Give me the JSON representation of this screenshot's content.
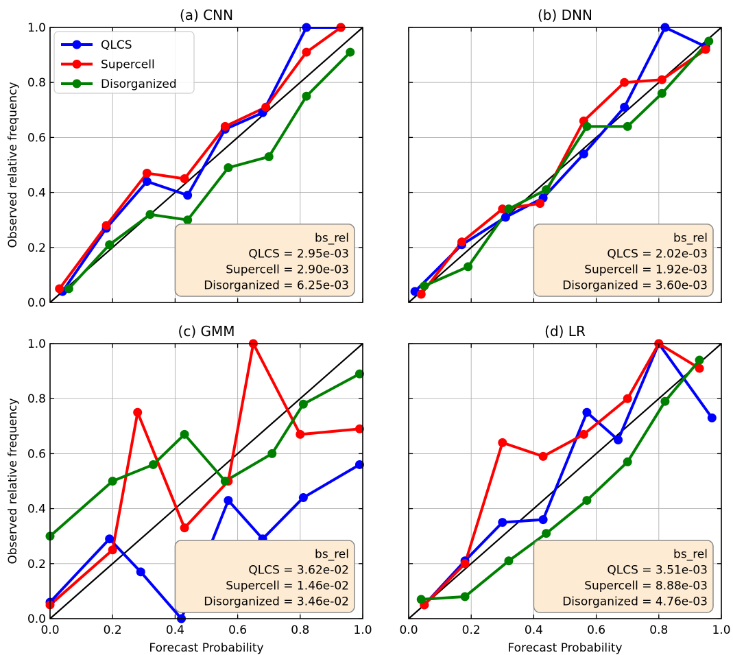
{
  "figure": {
    "series_styles": [
      {
        "name": "QLCS",
        "color": "#0000ff"
      },
      {
        "name": "Supercell",
        "color": "#ff0000"
      },
      {
        "name": "Disorganized",
        "color": "#008000"
      }
    ],
    "box_color": "#fdebd3"
  },
  "chart_data": [
    {
      "type": "line",
      "title": "(a) CNN",
      "xlabel": "",
      "ylabel": "Observed relative frequency",
      "xlim": [
        0.0,
        1.0
      ],
      "ylim": [
        0.0,
        1.0
      ],
      "xticks": [
        "0.0",
        "0.2",
        "0.4",
        "0.6",
        "0.8",
        "1.0"
      ],
      "yticks": [
        "0.0",
        "0.2",
        "0.4",
        "0.6",
        "0.8",
        "1.0"
      ],
      "show_x_ticklabels": false,
      "show_y_ticklabels": true,
      "grid": true,
      "legend": {
        "placement": "upper-left",
        "entries": [
          "QLCS",
          "Supercell",
          "Disorganized"
        ]
      },
      "reference_line": [
        [
          0,
          0
        ],
        [
          1,
          1
        ]
      ],
      "series": [
        {
          "name": "QLCS",
          "x": [
            0.04,
            0.18,
            0.31,
            0.44,
            0.56,
            0.68,
            0.82,
            0.93
          ],
          "y": [
            0.04,
            0.27,
            0.44,
            0.39,
            0.63,
            0.69,
            1.0,
            1.0
          ]
        },
        {
          "name": "Supercell",
          "x": [
            0.03,
            0.18,
            0.31,
            0.43,
            0.56,
            0.69,
            0.82,
            0.93
          ],
          "y": [
            0.05,
            0.28,
            0.47,
            0.45,
            0.64,
            0.71,
            0.91,
            1.0
          ]
        },
        {
          "name": "Disorganized",
          "x": [
            0.06,
            0.19,
            0.32,
            0.44,
            0.57,
            0.7,
            0.82,
            0.96
          ],
          "y": [
            0.05,
            0.21,
            0.32,
            0.3,
            0.49,
            0.53,
            0.75,
            0.91
          ]
        }
      ],
      "annotation": [
        "bs_rel",
        "QLCS = 2.95e-03",
        "Supercell = 2.90e-03",
        "Disorganized = 6.25e-03"
      ]
    },
    {
      "type": "line",
      "title": "(b) DNN",
      "xlabel": "",
      "ylabel": "",
      "xlim": [
        0.0,
        1.0
      ],
      "ylim": [
        0.0,
        1.0
      ],
      "xticks": [
        "0.0",
        "0.2",
        "0.4",
        "0.6",
        "0.8",
        "1.0"
      ],
      "yticks": [
        "0.0",
        "0.2",
        "0.4",
        "0.6",
        "0.8",
        "1.0"
      ],
      "show_x_ticklabels": false,
      "show_y_ticklabels": false,
      "grid": true,
      "reference_line": [
        [
          0,
          0
        ],
        [
          1,
          1
        ]
      ],
      "series": [
        {
          "name": "QLCS",
          "x": [
            0.02,
            0.17,
            0.31,
            0.43,
            0.56,
            0.69,
            0.82,
            0.95
          ],
          "y": [
            0.04,
            0.21,
            0.31,
            0.38,
            0.54,
            0.71,
            1.0,
            0.93
          ]
        },
        {
          "name": "Supercell",
          "x": [
            0.04,
            0.17,
            0.3,
            0.42,
            0.56,
            0.69,
            0.81,
            0.95
          ],
          "y": [
            0.03,
            0.22,
            0.34,
            0.36,
            0.66,
            0.8,
            0.81,
            0.92
          ]
        },
        {
          "name": "Disorganized",
          "x": [
            0.05,
            0.19,
            0.32,
            0.44,
            0.57,
            0.7,
            0.81,
            0.96
          ],
          "y": [
            0.06,
            0.13,
            0.34,
            0.41,
            0.64,
            0.64,
            0.76,
            0.95
          ]
        }
      ],
      "annotation": [
        "bs_rel",
        "QLCS = 2.02e-03",
        "Supercell = 1.92e-03",
        "Disorganized = 3.60e-03"
      ]
    },
    {
      "type": "line",
      "title": "(c) GMM",
      "xlabel": "Forecast Probability",
      "ylabel": "Observed relative frequency",
      "xlim": [
        0.0,
        1.0
      ],
      "ylim": [
        0.0,
        1.0
      ],
      "xticks": [
        "0.0",
        "0.2",
        "0.4",
        "0.6",
        "0.8",
        "1.0"
      ],
      "yticks": [
        "0.0",
        "0.2",
        "0.4",
        "0.6",
        "0.8",
        "1.0"
      ],
      "show_x_ticklabels": true,
      "show_y_ticklabels": true,
      "grid": true,
      "reference_line": [
        [
          0,
          0
        ],
        [
          1,
          1
        ]
      ],
      "series": [
        {
          "name": "QLCS",
          "x": [
            0.0,
            0.19,
            0.29,
            0.42,
            0.57,
            0.68,
            0.81,
            0.99
          ],
          "y": [
            0.06,
            0.29,
            0.17,
            0.0,
            0.43,
            0.29,
            0.44,
            0.56
          ]
        },
        {
          "name": "Supercell",
          "x": [
            0.0,
            0.2,
            0.28,
            0.43,
            0.57,
            0.65,
            0.8,
            0.99
          ],
          "y": [
            0.05,
            0.25,
            0.75,
            0.33,
            0.5,
            1.0,
            0.67,
            0.69
          ]
        },
        {
          "name": "Disorganized",
          "x": [
            0.0,
            0.2,
            0.33,
            0.43,
            0.56,
            0.71,
            0.81,
            0.99
          ],
          "y": [
            0.3,
            0.5,
            0.56,
            0.67,
            0.5,
            0.6,
            0.78,
            0.89
          ]
        }
      ],
      "annotation": [
        "bs_rel",
        "QLCS = 3.62e-02",
        "Supercell = 1.46e-02",
        "Disorganized = 3.46e-02"
      ]
    },
    {
      "type": "line",
      "title": "(d) LR",
      "xlabel": "Forecast Probability",
      "ylabel": "",
      "xlim": [
        0.0,
        1.0
      ],
      "ylim": [
        0.0,
        1.0
      ],
      "xticks": [
        "0.0",
        "0.2",
        "0.4",
        "0.6",
        "0.8",
        "1.0"
      ],
      "yticks": [
        "0.0",
        "0.2",
        "0.4",
        "0.6",
        "0.8",
        "1.0"
      ],
      "show_x_ticklabels": true,
      "show_y_ticklabels": false,
      "grid": true,
      "reference_line": [
        [
          0,
          0
        ],
        [
          1,
          1
        ]
      ],
      "series": [
        {
          "name": "QLCS",
          "x": [
            0.05,
            0.18,
            0.3,
            0.43,
            0.57,
            0.67,
            0.8,
            0.97
          ],
          "y": [
            0.05,
            0.21,
            0.35,
            0.36,
            0.75,
            0.65,
            1.0,
            0.73
          ]
        },
        {
          "name": "Supercell",
          "x": [
            0.05,
            0.18,
            0.3,
            0.43,
            0.56,
            0.7,
            0.8,
            0.93
          ],
          "y": [
            0.05,
            0.2,
            0.64,
            0.59,
            0.67,
            0.8,
            1.0,
            0.91
          ]
        },
        {
          "name": "Disorganized",
          "x": [
            0.04,
            0.18,
            0.32,
            0.44,
            0.57,
            0.7,
            0.82,
            0.93
          ],
          "y": [
            0.07,
            0.08,
            0.21,
            0.31,
            0.43,
            0.57,
            0.79,
            0.94
          ]
        }
      ],
      "annotation": [
        "bs_rel",
        "QLCS = 3.51e-03",
        "Supercell = 8.88e-03",
        "Disorganized = 4.76e-03"
      ]
    }
  ]
}
